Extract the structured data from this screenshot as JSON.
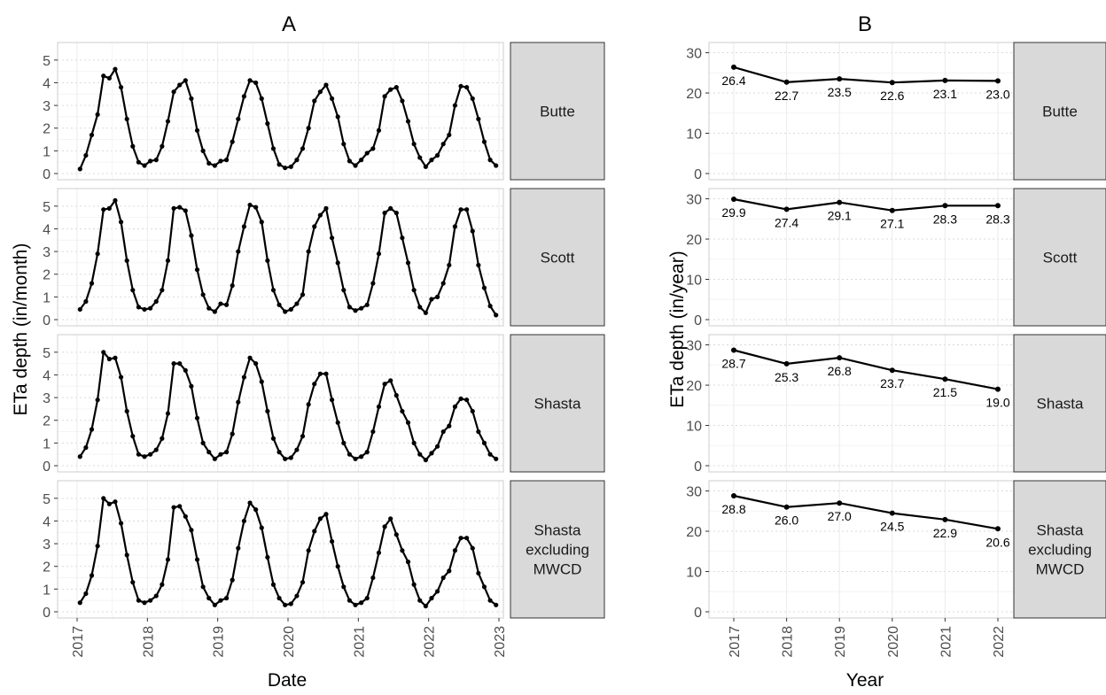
{
  "colors": {
    "line": "#000000",
    "grid_major": "#ebebeb",
    "grid_minor": "#f4f4f4",
    "grid_dotted": "#d9d9d9",
    "strip_fill": "#d9d9d9",
    "strip_border": "#333333",
    "panel_border": "#cccccc",
    "tick_text": "#4d4d4d"
  },
  "chart_data": [
    {
      "type": "line",
      "title": "A",
      "xlabel": "Date",
      "ylabel": "ETa depth (in/month)",
      "x_ticks": [
        "2017",
        "2018",
        "2019",
        "2020",
        "2021",
        "2022",
        "2023"
      ],
      "y_ticks": [
        "0",
        "1",
        "2",
        "3",
        "4",
        "5"
      ],
      "ylim": [
        0,
        5.5
      ],
      "x": [
        "2017-01",
        "2017-02",
        "2017-03",
        "2017-04",
        "2017-05",
        "2017-06",
        "2017-07",
        "2017-08",
        "2017-09",
        "2017-10",
        "2017-11",
        "2017-12",
        "2018-01",
        "2018-02",
        "2018-03",
        "2018-04",
        "2018-05",
        "2018-06",
        "2018-07",
        "2018-08",
        "2018-09",
        "2018-10",
        "2018-11",
        "2018-12",
        "2019-01",
        "2019-02",
        "2019-03",
        "2019-04",
        "2019-05",
        "2019-06",
        "2019-07",
        "2019-08",
        "2019-09",
        "2019-10",
        "2019-11",
        "2019-12",
        "2020-01",
        "2020-02",
        "2020-03",
        "2020-04",
        "2020-05",
        "2020-06",
        "2020-07",
        "2020-08",
        "2020-09",
        "2020-10",
        "2020-11",
        "2020-12",
        "2021-01",
        "2021-02",
        "2021-03",
        "2021-04",
        "2021-05",
        "2021-06",
        "2021-07",
        "2021-08",
        "2021-09",
        "2021-10",
        "2021-11",
        "2021-12",
        "2022-01",
        "2022-02",
        "2022-03",
        "2022-04",
        "2022-05",
        "2022-06",
        "2022-07",
        "2022-08",
        "2022-09",
        "2022-10",
        "2022-11",
        "2022-12"
      ],
      "grid": true,
      "facets": [
        {
          "label": "Butte",
          "values": [
            0.2,
            0.8,
            1.7,
            2.6,
            4.3,
            4.2,
            4.6,
            3.8,
            2.4,
            1.2,
            0.5,
            0.35,
            0.55,
            0.6,
            1.2,
            2.3,
            3.6,
            3.9,
            4.1,
            3.3,
            1.9,
            1.0,
            0.45,
            0.35,
            0.55,
            0.6,
            1.4,
            2.4,
            3.4,
            4.1,
            4.0,
            3.3,
            2.2,
            1.1,
            0.4,
            0.25,
            0.3,
            0.6,
            1.1,
            2.0,
            3.2,
            3.6,
            3.9,
            3.3,
            2.5,
            1.3,
            0.55,
            0.35,
            0.6,
            0.9,
            1.1,
            1.9,
            3.4,
            3.7,
            3.8,
            3.2,
            2.3,
            1.3,
            0.7,
            0.3,
            0.6,
            0.8,
            1.3,
            1.7,
            3.0,
            3.85,
            3.8,
            3.3,
            2.4,
            1.4,
            0.6,
            0.35
          ]
        },
        {
          "label": "Scott",
          "values": [
            0.45,
            0.8,
            1.6,
            2.9,
            4.85,
            4.9,
            5.25,
            4.3,
            2.6,
            1.3,
            0.55,
            0.45,
            0.5,
            0.8,
            1.3,
            2.6,
            4.9,
            4.95,
            4.8,
            3.7,
            2.2,
            1.1,
            0.5,
            0.35,
            0.7,
            0.65,
            1.5,
            3.0,
            4.1,
            5.05,
            4.95,
            4.3,
            2.6,
            1.3,
            0.65,
            0.35,
            0.45,
            0.7,
            1.1,
            3.0,
            4.1,
            4.6,
            4.9,
            3.6,
            2.5,
            1.3,
            0.55,
            0.4,
            0.5,
            0.65,
            1.6,
            2.9,
            4.7,
            4.9,
            4.7,
            3.6,
            2.5,
            1.3,
            0.55,
            0.3,
            0.9,
            1.0,
            1.6,
            2.4,
            4.1,
            4.85,
            4.85,
            3.9,
            2.4,
            1.4,
            0.6,
            0.2
          ]
        },
        {
          "label": "Shasta",
          "values": [
            0.4,
            0.8,
            1.6,
            2.9,
            5.0,
            4.7,
            4.75,
            3.9,
            2.4,
            1.3,
            0.5,
            0.4,
            0.5,
            0.7,
            1.2,
            2.3,
            4.5,
            4.5,
            4.2,
            3.5,
            2.1,
            1.0,
            0.6,
            0.3,
            0.5,
            0.6,
            1.4,
            2.8,
            3.9,
            4.75,
            4.5,
            3.7,
            2.4,
            1.2,
            0.6,
            0.3,
            0.35,
            0.7,
            1.3,
            2.7,
            3.6,
            4.05,
            4.05,
            2.9,
            1.9,
            1.0,
            0.5,
            0.3,
            0.4,
            0.6,
            1.5,
            2.6,
            3.6,
            3.75,
            3.1,
            2.4,
            1.9,
            1.0,
            0.5,
            0.25,
            0.55,
            0.85,
            1.5,
            1.75,
            2.6,
            2.95,
            2.9,
            2.4,
            1.5,
            1.0,
            0.5,
            0.3
          ]
        },
        {
          "label": "Shasta excluding MWCD",
          "values": [
            0.4,
            0.8,
            1.6,
            2.9,
            5.0,
            4.75,
            4.85,
            3.9,
            2.5,
            1.3,
            0.5,
            0.4,
            0.5,
            0.7,
            1.2,
            2.3,
            4.6,
            4.65,
            4.2,
            3.6,
            2.3,
            1.1,
            0.6,
            0.3,
            0.5,
            0.6,
            1.4,
            2.8,
            4.0,
            4.8,
            4.5,
            3.7,
            2.4,
            1.2,
            0.6,
            0.3,
            0.35,
            0.7,
            1.3,
            2.7,
            3.55,
            4.1,
            4.3,
            3.1,
            2.0,
            1.1,
            0.5,
            0.3,
            0.4,
            0.6,
            1.5,
            2.6,
            3.75,
            4.1,
            3.4,
            2.7,
            2.2,
            1.2,
            0.5,
            0.25,
            0.6,
            0.9,
            1.5,
            1.8,
            2.7,
            3.25,
            3.25,
            2.8,
            1.7,
            1.1,
            0.5,
            0.3
          ]
        }
      ]
    },
    {
      "type": "line",
      "title": "B",
      "xlabel": "Year",
      "ylabel": "ETa depth (in/year)",
      "categories": [
        "2017",
        "2018",
        "2019",
        "2020",
        "2021",
        "2022"
      ],
      "y_ticks": [
        "0",
        "10",
        "20",
        "30"
      ],
      "ylim": [
        0,
        31
      ],
      "grid": true,
      "facets": [
        {
          "label": "Butte",
          "values": [
            26.4,
            22.7,
            23.5,
            22.6,
            23.1,
            23.0
          ],
          "value_labels": [
            "26.4",
            "22.7",
            "23.5",
            "22.6",
            "23.1",
            "23.0"
          ]
        },
        {
          "label": "Scott",
          "values": [
            29.9,
            27.4,
            29.1,
            27.1,
            28.3,
            28.3
          ],
          "value_labels": [
            "29.9",
            "27.4",
            "29.1",
            "27.1",
            "28.3",
            "28.3"
          ]
        },
        {
          "label": "Shasta",
          "values": [
            28.7,
            25.3,
            26.8,
            23.7,
            21.5,
            19.0
          ],
          "value_labels": [
            "28.7",
            "25.3",
            "26.8",
            "23.7",
            "21.5",
            "19.0"
          ]
        },
        {
          "label": "Shasta excluding MWCD",
          "values": [
            28.8,
            26.0,
            27.0,
            24.5,
            22.9,
            20.6
          ],
          "value_labels": [
            "28.8",
            "26.0",
            "27.0",
            "24.5",
            "22.9",
            "20.6"
          ]
        }
      ]
    }
  ]
}
